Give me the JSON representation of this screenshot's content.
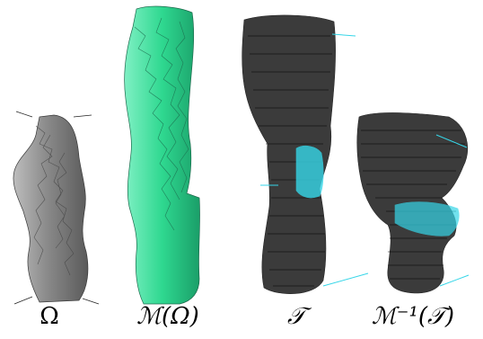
{
  "panels": [
    {
      "caption": "Ω",
      "fill": "#8f8f8f",
      "edge": "#3a3a3a"
    },
    {
      "caption": "ℳ(Ω)",
      "fill": "#3fe0a0",
      "edge": "#1c6a4c"
    },
    {
      "caption": "𝒯",
      "line": "#000000",
      "accent": "#36d6e8"
    },
    {
      "caption": "ℳ⁻¹(𝒯)",
      "line": "#000000",
      "accent": "#36d6e8"
    }
  ]
}
